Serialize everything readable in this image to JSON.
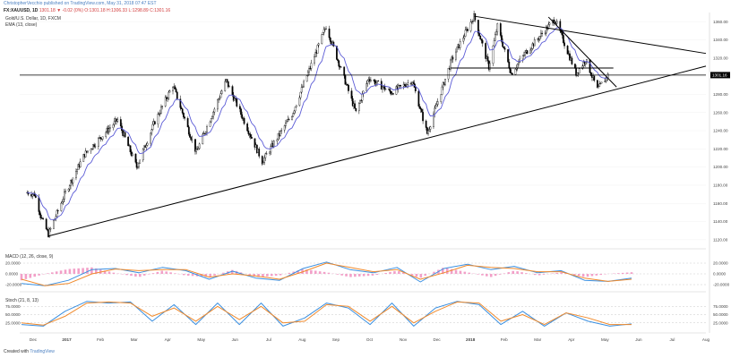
{
  "header": {
    "publisher_line": "ChristopherVecchio published on TradingView.com, May 31, 2018 07:47 EST",
    "symbol": "FX:XAUUSD, 1D",
    "ohlc": "1301.18  ▼ -0.02 (0%)  O:1301.18  H:1306.33  L:1298.89  C:1301.16",
    "main_title": "Gold/U.S. Dollar, 1D, FXCM",
    "ema_label": "EMA (13, close)",
    "macd_label": "MACD (12, 26, close, 9)",
    "stoch_label": "Stoch (21, 8, 13)"
  },
  "footer": {
    "created_with": "Created with",
    "brand": "TradingView"
  },
  "colors": {
    "candle": "#000000",
    "ema": "#5b5bd6",
    "trendline": "#000000",
    "macd_line": "#3a8fe0",
    "signal_line": "#f08a2c",
    "histogram": "#f2a0c8",
    "stoch_k": "#3a8fe0",
    "stoch_d": "#f08a2c",
    "price_badge_bg": "#000000",
    "price_badge_text": "#ffffff"
  },
  "chart_data": [
    {
      "type": "candlestick",
      "title": "Gold/U.S. Dollar, 1D, FXCM",
      "x_ticks": [
        "Dec",
        "2017",
        "Feb",
        "Mar",
        "Apr",
        "May",
        "Jun",
        "Jul",
        "Aug",
        "Sep",
        "Oct",
        "Nov",
        "Dec",
        "2018",
        "Feb",
        "Mar",
        "Apr",
        "May",
        "Jun",
        "Jul",
        "Aug"
      ],
      "y_ticks": [
        1120,
        1140,
        1160,
        1180,
        1200,
        1220,
        1240,
        1260,
        1280,
        1300,
        1320,
        1340,
        1360
      ],
      "ylim": [
        1110,
        1370
      ],
      "last_price_label": "1301.16",
      "close_path": [
        [
          "2016-12-01",
          1172
        ],
        [
          "2016-12-08",
          1170
        ],
        [
          "2016-12-15",
          1142
        ],
        [
          "2016-12-21",
          1126
        ],
        [
          "2017-01-06",
          1172
        ],
        [
          "2017-01-24",
          1214
        ],
        [
          "2017-02-24",
          1252
        ],
        [
          "2017-03-14",
          1200
        ],
        [
          "2017-03-31",
          1250
        ],
        [
          "2017-04-17",
          1290
        ],
        [
          "2017-05-09",
          1216
        ],
        [
          "2017-06-06",
          1295
        ],
        [
          "2017-07-10",
          1206
        ],
        [
          "2017-08-07",
          1258
        ],
        [
          "2017-09-08",
          1355
        ],
        [
          "2017-10-06",
          1260
        ],
        [
          "2017-10-18",
          1298
        ],
        [
          "2017-11-08",
          1282
        ],
        [
          "2017-11-28",
          1295
        ],
        [
          "2017-12-12",
          1237
        ],
        [
          "2018-01-04",
          1318
        ],
        [
          "2018-01-25",
          1366
        ],
        [
          "2018-02-08",
          1310
        ],
        [
          "2018-02-16",
          1355
        ],
        [
          "2018-03-01",
          1303
        ],
        [
          "2018-03-14",
          1325
        ],
        [
          "2018-04-11",
          1363
        ],
        [
          "2018-05-01",
          1303
        ],
        [
          "2018-05-10",
          1318
        ],
        [
          "2018-05-21",
          1285
        ],
        [
          "2018-05-31",
          1301
        ]
      ],
      "ema_period": 13
    },
    {
      "type": "line",
      "title": "MACD (12, 26, close, 9)",
      "y_ticks": [
        -20,
        0,
        20
      ],
      "ylim": [
        -30,
        30
      ],
      "series": [
        {
          "name": "MACD",
          "values": [
            -18,
            -22,
            -12,
            8,
            10,
            2,
            12,
            6,
            -10,
            5,
            -8,
            -12,
            10,
            22,
            8,
            2,
            12,
            -15,
            10,
            18,
            8,
            14,
            2,
            6,
            -12,
            -14,
            -8
          ]
        },
        {
          "name": "Signal",
          "values": [
            -10,
            -22,
            -18,
            0,
            9,
            6,
            8,
            8,
            -6,
            0,
            -4,
            -10,
            4,
            20,
            12,
            4,
            8,
            -10,
            2,
            16,
            12,
            10,
            4,
            4,
            -8,
            -14,
            -10
          ]
        }
      ]
    },
    {
      "type": "line",
      "title": "Stoch (21, 8, 13)",
      "y_ticks": [
        25,
        50,
        75
      ],
      "ylim": [
        0,
        100
      ],
      "series": [
        {
          "name": "%K",
          "values": [
            20,
            15,
            60,
            90,
            85,
            88,
            30,
            80,
            20,
            85,
            20,
            85,
            15,
            40,
            85,
            70,
            20,
            85,
            15,
            70,
            90,
            80,
            20,
            60,
            15,
            55,
            30,
            15,
            22
          ]
        },
        {
          "name": "%D",
          "values": [
            25,
            18,
            45,
            85,
            88,
            85,
            45,
            70,
            30,
            75,
            35,
            75,
            25,
            30,
            80,
            75,
            30,
            75,
            25,
            60,
            88,
            85,
            30,
            50,
            20,
            55,
            40,
            20,
            20
          ]
        }
      ]
    }
  ]
}
